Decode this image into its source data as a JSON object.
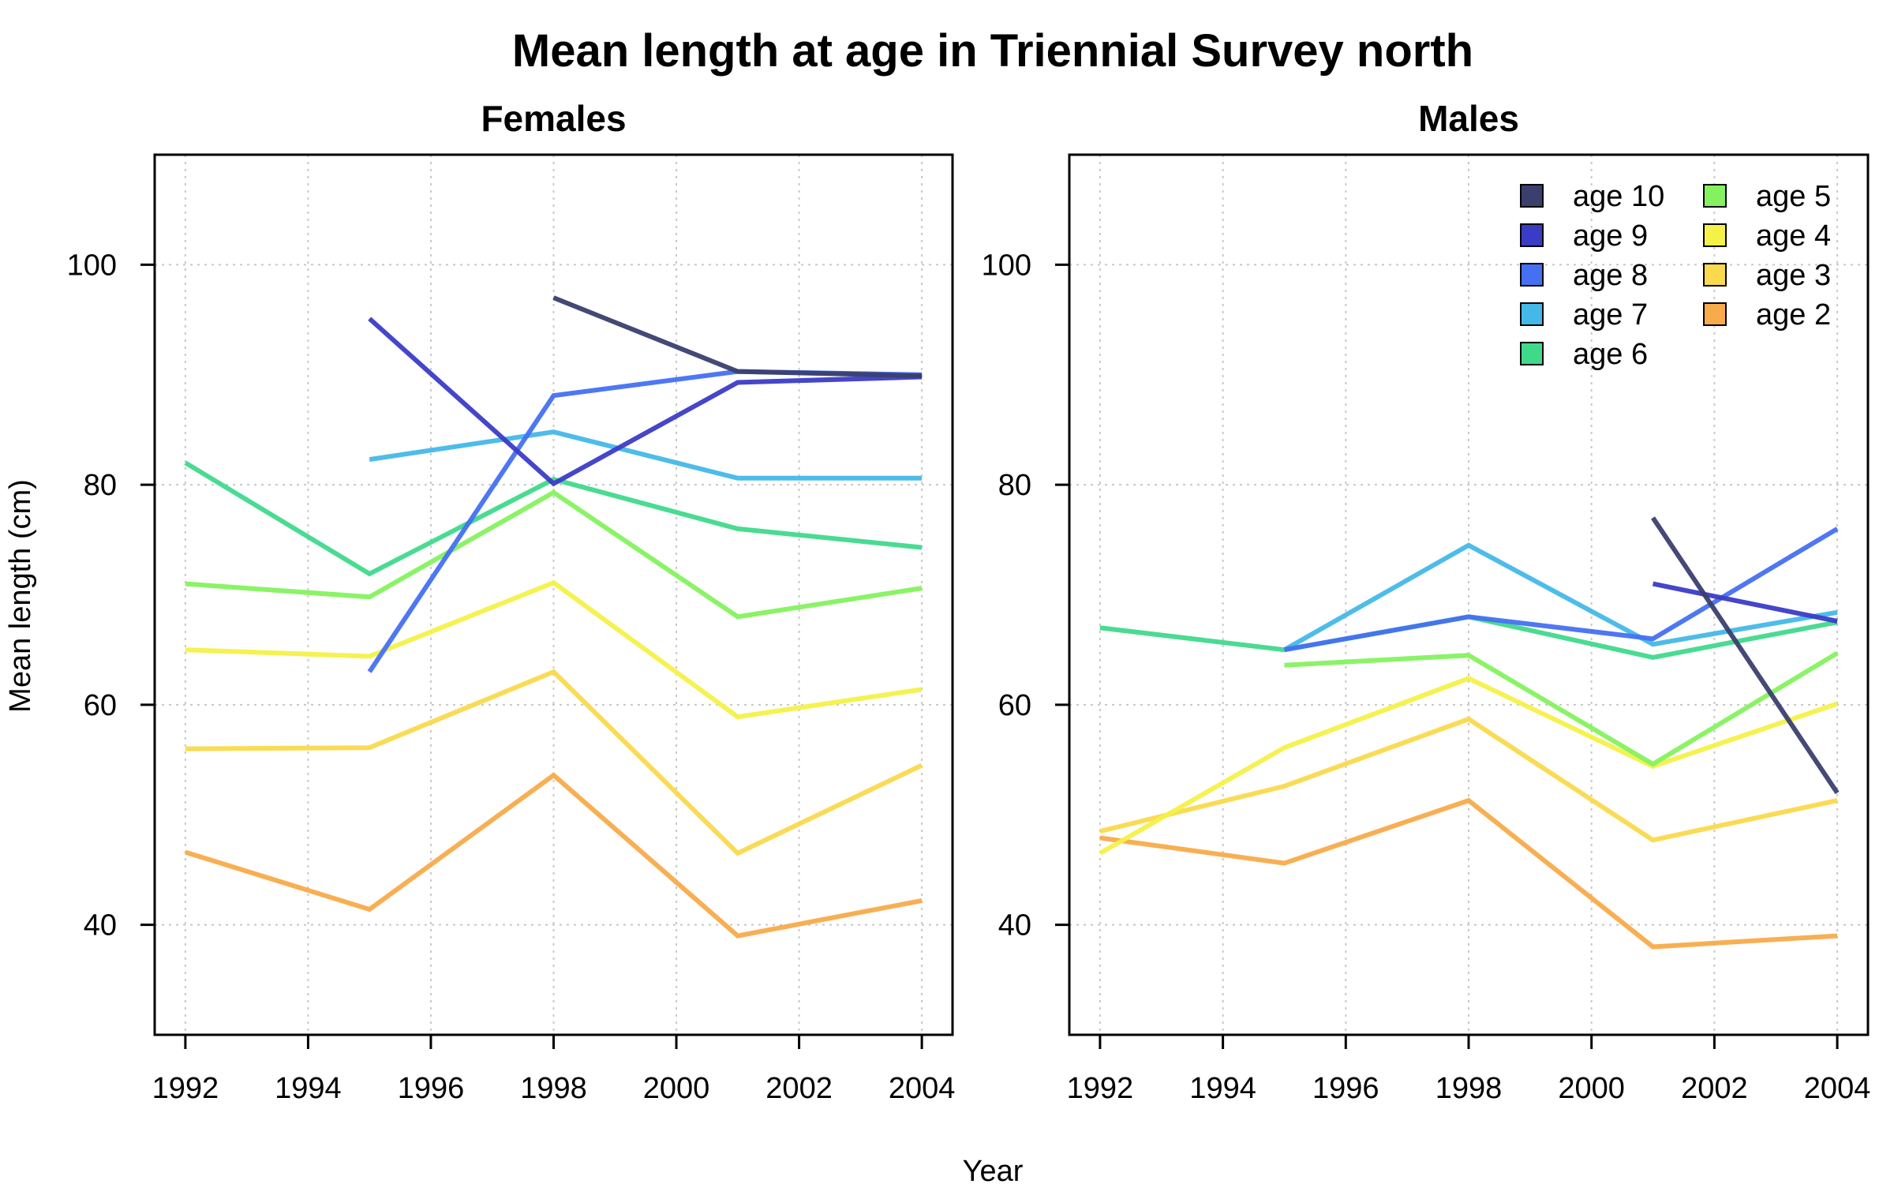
{
  "title": "Mean length at age in Triennial Survey north",
  "xlabel": "Year",
  "ylabel": "Mean length (cm)",
  "colors": {
    "age 10": "#3a3f6e",
    "age 9": "#3b3cc6",
    "age 8": "#4570f2",
    "age 7": "#44b8e8",
    "age 6": "#40d98c",
    "age 5": "#84f25e",
    "age 4": "#f4f148",
    "age 3": "#fad94c",
    "age 2": "#f8ab4a"
  },
  "legend": {
    "placement": "top-right",
    "entries": [
      "age 10",
      "age 9",
      "age 8",
      "age 7",
      "age 6",
      "age 5",
      "age 4",
      "age 3",
      "age 2"
    ]
  },
  "chart_data": [
    {
      "type": "line",
      "title": "Females",
      "xlim": [
        1991.5,
        2004.5
      ],
      "ylim": [
        30,
        110
      ],
      "xticks": [
        1992,
        1994,
        1996,
        1998,
        2000,
        2002,
        2004
      ],
      "yticks": [
        40,
        60,
        80,
        100
      ],
      "grid": true,
      "series": [
        {
          "name": "age 2",
          "x": [
            1992,
            1995,
            1998,
            2001,
            2004
          ],
          "y": [
            46.6,
            41.4,
            53.6,
            39.0,
            42.2
          ]
        },
        {
          "name": "age 3",
          "x": [
            1992,
            1995,
            1998,
            2001,
            2004
          ],
          "y": [
            56.0,
            56.1,
            63.0,
            46.5,
            54.5
          ]
        },
        {
          "name": "age 4",
          "x": [
            1992,
            1995,
            1998,
            2001,
            2004
          ],
          "y": [
            65.0,
            64.4,
            71.1,
            58.9,
            61.4
          ]
        },
        {
          "name": "age 5",
          "x": [
            1992,
            1995,
            1998,
            2001,
            2004
          ],
          "y": [
            71.0,
            69.8,
            79.3,
            68.0,
            70.6
          ]
        },
        {
          "name": "age 6",
          "x": [
            1992,
            1995,
            1998,
            2001,
            2004
          ],
          "y": [
            82.0,
            71.9,
            80.5,
            76.0,
            74.3
          ]
        },
        {
          "name": "age 7",
          "x": [
            1995,
            1998,
            2001,
            2004
          ],
          "y": [
            82.3,
            84.8,
            80.6,
            80.6
          ]
        },
        {
          "name": "age 8",
          "x": [
            1995,
            1998,
            2001,
            2004
          ],
          "y": [
            63.0,
            88.1,
            90.3,
            90.0
          ]
        },
        {
          "name": "age 9",
          "x": [
            1995,
            1998,
            2001,
            2004
          ],
          "y": [
            95.1,
            80.1,
            89.3,
            89.8
          ]
        },
        {
          "name": "age 10",
          "x": [
            1998,
            2001,
            2004
          ],
          "y": [
            97.0,
            90.3,
            89.9
          ]
        }
      ]
    },
    {
      "type": "line",
      "title": "Males",
      "xlim": [
        1991.5,
        2004.5
      ],
      "ylim": [
        30,
        110
      ],
      "xticks": [
        1992,
        1994,
        1996,
        1998,
        2000,
        2002,
        2004
      ],
      "yticks": [
        40,
        60,
        80,
        100
      ],
      "grid": true,
      "series": [
        {
          "name": "age 2",
          "x": [
            1992,
            1995,
            1998,
            2001,
            2004
          ],
          "y": [
            47.9,
            45.6,
            51.3,
            38.0,
            39.0
          ]
        },
        {
          "name": "age 3",
          "x": [
            1992,
            1995,
            1998,
            2001,
            2004
          ],
          "y": [
            48.5,
            52.6,
            58.7,
            47.7,
            51.3
          ]
        },
        {
          "name": "age 4",
          "x": [
            1992,
            1995,
            1998,
            2001,
            2004
          ],
          "y": [
            46.5,
            56.1,
            62.4,
            54.4,
            60.1
          ]
        },
        {
          "name": "age 5",
          "x": [
            1995,
            1998,
            2001,
            2004
          ],
          "y": [
            63.6,
            64.5,
            54.6,
            64.7
          ]
        },
        {
          "name": "age 6",
          "x": [
            1992,
            1995,
            1998,
            2001,
            2004
          ],
          "y": [
            67.0,
            65.0,
            68.0,
            64.3,
            67.5
          ]
        },
        {
          "name": "age 7",
          "x": [
            1995,
            1998,
            2001,
            2004
          ],
          "y": [
            65.0,
            74.5,
            65.5,
            68.4
          ]
        },
        {
          "name": "age 8",
          "x": [
            1995,
            1998,
            2001,
            2004
          ],
          "y": [
            65.0,
            68.0,
            66.0,
            76.0
          ]
        },
        {
          "name": "age 9",
          "x": [
            2001,
            2004
          ],
          "y": [
            71.0,
            67.6
          ]
        },
        {
          "name": "age 10",
          "x": [
            2001,
            2004
          ],
          "y": [
            77.0,
            52.0
          ]
        }
      ]
    }
  ]
}
